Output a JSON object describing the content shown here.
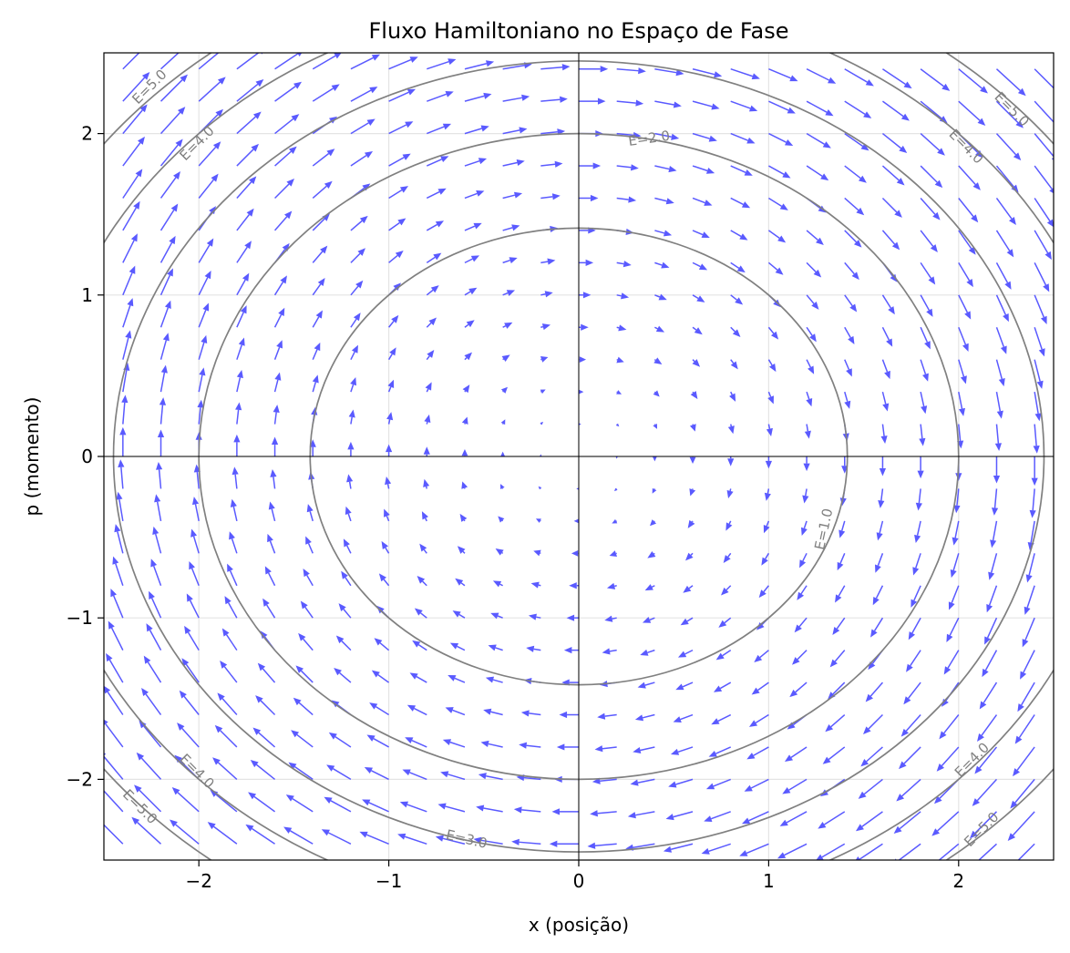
{
  "chart_data": {
    "type": "quiver",
    "title": "Fluxo Hamiltoniano no Espaço de Fase",
    "xlabel": "x (posição)",
    "ylabel": "p (momento)",
    "xlim": [
      -2.5,
      2.5
    ],
    "ylim": [
      -2.5,
      2.5
    ],
    "x_ticks": [
      -2,
      -1,
      0,
      1,
      2
    ],
    "y_ticks": [
      -2,
      -1,
      0,
      1,
      2
    ],
    "x_tick_labels": [
      "−2",
      "−1",
      "0",
      "1",
      "2"
    ],
    "y_tick_labels": [
      "−2",
      "−1",
      "0",
      "1",
      "2"
    ],
    "grid": true,
    "hamiltonian": "H = (x^2 + p^2) / 2",
    "vector_field": {
      "dx_dt": "p",
      "dp_dt": "-x",
      "grid_n": 25,
      "range": [
        -2.4,
        2.4
      ],
      "color": "#5a5aff"
    },
    "contours": {
      "levels": [
        1.0,
        2.0,
        3.0,
        4.0,
        5.0
      ],
      "color": "#808080",
      "labels": [
        {
          "text": "E=1.0",
          "x": 1.29,
          "y": -0.45,
          "angle_deg": -78
        },
        {
          "text": "E=2.0",
          "x": 0.37,
          "y": 1.97,
          "angle_deg": -8
        },
        {
          "text": "E=3.0",
          "x": -0.59,
          "y": -2.37,
          "angle_deg": 13
        },
        {
          "text": "E=4.0",
          "x": -2.01,
          "y": 1.94,
          "angle_deg": -45
        },
        {
          "text": "E=4.0",
          "x": 2.04,
          "y": 1.92,
          "angle_deg": 45
        },
        {
          "text": "E=4.0",
          "x": -2.01,
          "y": -1.95,
          "angle_deg": 45
        },
        {
          "text": "E=4.0",
          "x": 2.07,
          "y": -1.88,
          "angle_deg": -45
        },
        {
          "text": "E=5.0",
          "x": -2.26,
          "y": 2.29,
          "angle_deg": -45
        },
        {
          "text": "E=5.0",
          "x": 2.28,
          "y": 2.15,
          "angle_deg": 45
        },
        {
          "text": "E=5.0",
          "x": -2.31,
          "y": -2.17,
          "angle_deg": 45
        },
        {
          "text": "E=5.0",
          "x": 2.12,
          "y": -2.31,
          "angle_deg": -45
        }
      ]
    }
  }
}
